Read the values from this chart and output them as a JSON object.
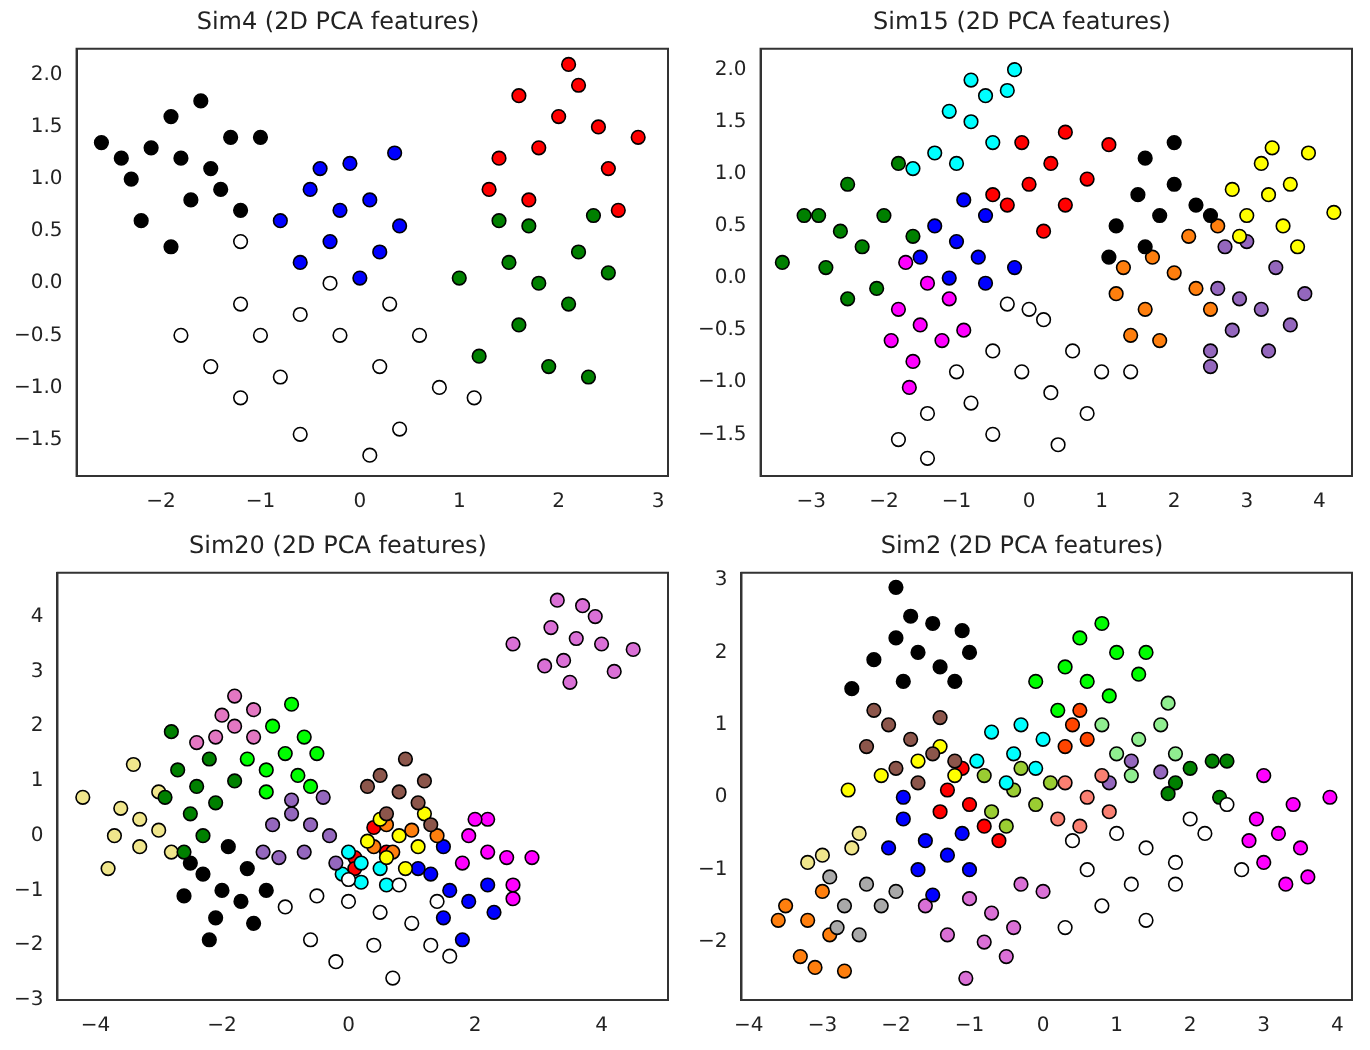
{
  "chart_data": [
    {
      "type": "scatter",
      "title": "Sim4 (2D PCA features)",
      "marker": "circle",
      "grid": false,
      "xlim": [
        -2.85,
        3.1
      ],
      "ylim": [
        -1.85,
        2.25
      ],
      "xticks": [
        -2,
        -1,
        0,
        1,
        2,
        3
      ],
      "yticks": [
        -1.5,
        {
          "value": -1,
          "label": "−1.0"
        },
        -0.5,
        {
          "value": 0,
          "label": "0.0"
        },
        0.5,
        {
          "value": 1,
          "label": "1.0"
        },
        1.5,
        {
          "value": 2,
          "label": "2.0"
        }
      ],
      "series": [
        {
          "color": "#ffffff",
          "x": [
            -0.2,
            -0.6,
            0.2,
            -1.2,
            -1.8,
            -1.5,
            -0.8,
            0.6,
            0.8,
            0.4,
            0.1,
            -0.6,
            -1.2,
            1.15,
            -1.2,
            -0.3,
            0.3,
            -1.0
          ],
          "values": [
            -0.5,
            -0.3,
            -0.8,
            -0.2,
            -0.5,
            -0.8,
            -0.9,
            -0.5,
            -1.0,
            -1.4,
            -1.65,
            -1.45,
            -1.1,
            -1.1,
            0.4,
            0.0,
            -0.2,
            -0.5
          ]
        },
        {
          "color": "#000000",
          "x": [
            -1.8,
            -2.1,
            -1.5,
            -2.3,
            -1.3,
            -1.9,
            -1.7,
            -2.6,
            -1.0,
            -1.9,
            -1.2,
            -2.2,
            -1.6,
            -2.4,
            -1.4
          ],
          "values": [
            1.2,
            1.3,
            1.1,
            1.0,
            1.4,
            1.6,
            0.8,
            1.35,
            1.4,
            0.35,
            0.7,
            0.6,
            1.75,
            1.2,
            0.9
          ]
        },
        {
          "color": "#0000ff",
          "x": [
            -0.2,
            -0.5,
            0.1,
            -0.3,
            0.2,
            -0.8,
            -0.1,
            0.35,
            0.4,
            -0.6,
            0.0,
            -0.4
          ],
          "values": [
            0.7,
            0.9,
            0.8,
            0.4,
            0.3,
            0.6,
            1.15,
            1.25,
            0.55,
            0.2,
            0.05,
            1.1
          ]
        },
        {
          "color": "#ff0000",
          "x": [
            2.0,
            1.6,
            2.4,
            1.8,
            2.2,
            1.4,
            2.8,
            2.6,
            2.1,
            1.3,
            2.5,
            1.7
          ],
          "values": [
            1.6,
            1.8,
            1.5,
            1.3,
            1.9,
            1.2,
            1.4,
            0.7,
            2.1,
            0.9,
            1.1,
            0.8
          ]
        },
        {
          "color": "#008000",
          "x": [
            1.8,
            1.5,
            2.1,
            1.6,
            2.2,
            1.0,
            2.5,
            1.4,
            1.9,
            2.3,
            1.2,
            1.7,
            2.35
          ],
          "values": [
            0.0,
            0.2,
            -0.2,
            -0.4,
            0.3,
            0.05,
            0.1,
            0.6,
            -0.8,
            -0.9,
            -0.7,
            0.55,
            0.65
          ]
        }
      ]
    },
    {
      "type": "scatter",
      "title": "Sim15 (2D PCA features)",
      "marker": "circle",
      "grid": false,
      "xlim": [
        -3.7,
        4.45
      ],
      "ylim": [
        -1.9,
        2.2
      ],
      "xticks": [
        -3,
        -2,
        -1,
        0,
        1,
        2,
        3,
        4
      ],
      "yticks": [
        -1.5,
        {
          "value": -1,
          "label": "−1.0"
        },
        -0.5,
        {
          "value": 0,
          "label": "0.0"
        },
        0.5,
        {
          "value": 1,
          "label": "1.0"
        },
        1.5,
        {
          "value": 2,
          "label": "2.0"
        }
      ],
      "series": [
        {
          "color": "#ffffff",
          "x": [
            -0.1,
            -0.5,
            0.3,
            -0.8,
            0.6,
            1.0,
            1.4,
            -1.4,
            -1.8,
            -1.4,
            0.4,
            0.0,
            -0.3,
            0.8,
            -1.0,
            -0.5,
            0.2
          ],
          "values": [
            -0.9,
            -0.7,
            -1.1,
            -1.2,
            -0.7,
            -0.9,
            -0.9,
            -1.3,
            -1.55,
            -1.73,
            -1.6,
            -0.3,
            -0.25,
            -1.3,
            -0.9,
            -1.5,
            -0.4
          ]
        },
        {
          "color": "#008000",
          "x": [
            -2.6,
            -2.9,
            -2.3,
            -2.5,
            -2.8,
            -3.4,
            -2.0,
            -1.8,
            -2.5,
            -2.1,
            -3.1,
            -1.6
          ],
          "values": [
            0.45,
            0.6,
            0.3,
            0.9,
            0.1,
            0.15,
            0.6,
            1.1,
            -0.2,
            -0.1,
            0.6,
            0.4
          ]
        },
        {
          "color": "#00ffff",
          "x": [
            -0.8,
            -1.1,
            -0.5,
            -1.0,
            -0.3,
            -0.8,
            -0.2,
            -1.3,
            -1.6,
            -0.6
          ],
          "values": [
            1.5,
            1.6,
            1.3,
            1.1,
            1.8,
            1.9,
            2.0,
            1.2,
            1.05,
            1.75
          ]
        },
        {
          "color": "#ff0000",
          "x": [
            0.0,
            -0.3,
            0.3,
            0.5,
            -0.1,
            0.8,
            0.2,
            1.1,
            -0.5,
            0.5
          ],
          "values": [
            0.9,
            0.7,
            1.1,
            0.7,
            1.3,
            0.95,
            0.45,
            1.28,
            0.8,
            1.4
          ]
        },
        {
          "color": "#0000ff",
          "x": [
            -1.0,
            -1.3,
            -0.7,
            -1.1,
            -0.6,
            -1.5,
            -0.9,
            -0.2,
            -0.6
          ],
          "values": [
            0.35,
            0.5,
            0.2,
            0.0,
            0.6,
            0.2,
            0.75,
            0.1,
            -0.05
          ]
        },
        {
          "color": "#ff00ff",
          "x": [
            -1.5,
            -1.8,
            -1.2,
            -1.6,
            -1.9,
            -1.1,
            -1.4,
            -1.65,
            -0.9,
            -1.7
          ],
          "values": [
            -0.45,
            -0.3,
            -0.6,
            -0.8,
            -0.6,
            -0.2,
            -0.05,
            -1.05,
            -0.5,
            0.15
          ]
        },
        {
          "color": "#000000",
          "x": [
            1.8,
            1.5,
            2.0,
            1.2,
            1.6,
            2.3,
            2.0,
            1.6,
            1.1,
            2.5
          ],
          "values": [
            0.6,
            0.8,
            0.9,
            0.5,
            0.3,
            0.7,
            1.3,
            1.15,
            0.2,
            0.6
          ]
        },
        {
          "color": "#ffff00",
          "x": [
            3.3,
            3.0,
            3.6,
            3.2,
            3.5,
            2.8,
            3.85,
            4.2,
            3.35,
            2.9,
            3.7
          ],
          "values": [
            0.8,
            0.6,
            0.9,
            1.1,
            0.5,
            0.85,
            1.2,
            0.63,
            1.25,
            0.4,
            0.3
          ]
        },
        {
          "color": "#ff7f0e",
          "x": [
            2.0,
            1.7,
            2.3,
            1.6,
            2.2,
            1.3,
            1.2,
            1.8,
            2.6,
            2.5,
            1.4
          ],
          "values": [
            0.05,
            0.2,
            -0.1,
            -0.3,
            0.4,
            0.1,
            -0.15,
            -0.6,
            0.5,
            -0.3,
            -0.55
          ]
        },
        {
          "color": "#9467bd",
          "x": [
            2.9,
            2.6,
            3.2,
            2.8,
            3.4,
            2.7,
            2.5,
            3.3,
            2.5,
            3.8,
            3.6,
            3.0
          ],
          "values": [
            -0.2,
            -0.1,
            -0.3,
            -0.5,
            0.1,
            0.3,
            -0.7,
            -0.7,
            -0.85,
            -0.15,
            -0.45,
            0.35
          ]
        }
      ]
    },
    {
      "type": "scatter",
      "title": "Sim20 (2D PCA features)",
      "marker": "circle",
      "grid": false,
      "xlim": [
        -4.6,
        5.05
      ],
      "ylim": [
        -3,
        4.8
      ],
      "xticks": [
        -4,
        -2,
        0,
        2,
        4
      ],
      "yticks": [
        -3,
        -2,
        -1,
        0,
        1,
        2,
        3,
        4
      ],
      "series": [
        {
          "color": "#ffffff",
          "x": [
            0.5,
            0.0,
            1.0,
            -0.5,
            0.4,
            1.3,
            -0.2,
            0.7,
            1.6,
            -1.0,
            -0.6,
            0.0,
            0.8,
            1.4
          ],
          "values": [
            -1.4,
            -1.2,
            -1.6,
            -1.1,
            -2.0,
            -2.0,
            -2.3,
            -2.6,
            -2.2,
            -1.3,
            -1.9,
            -0.8,
            -0.9,
            -1.2
          ]
        },
        {
          "color": "#da70d6",
          "x": [
            3.6,
            3.2,
            4.0,
            3.4,
            3.9,
            3.3,
            3.1,
            3.5,
            4.5,
            2.6,
            4.2,
            3.7
          ],
          "values": [
            3.6,
            3.8,
            3.5,
            3.2,
            4.0,
            4.3,
            3.1,
            2.8,
            3.4,
            3.5,
            3.0,
            4.2
          ]
        },
        {
          "color": "#e377c2",
          "x": [
            -1.8,
            -2.1,
            -1.5,
            -2.4,
            -1.8,
            -2.0,
            -1.5
          ],
          "values": [
            2.0,
            1.8,
            2.3,
            1.7,
            2.55,
            2.2,
            1.8
          ]
        },
        {
          "color": "#00ff00",
          "x": [
            -1.0,
            -1.3,
            -0.7,
            -0.8,
            -1.2,
            -0.5,
            -0.9,
            -1.6,
            -0.6,
            -1.3
          ],
          "values": [
            1.5,
            1.2,
            1.8,
            1.1,
            2.0,
            1.5,
            2.4,
            1.4,
            0.9,
            0.8
          ]
        },
        {
          "color": "#008000",
          "x": [
            -2.4,
            -2.7,
            -2.1,
            -2.5,
            -2.2,
            -2.9,
            -2.8,
            -1.8,
            -2.3,
            -2.6
          ],
          "values": [
            0.9,
            1.2,
            0.6,
            0.4,
            1.4,
            0.7,
            1.9,
            1.0,
            0.0,
            -0.3
          ]
        },
        {
          "color": "#f0e68c",
          "x": [
            -3.3,
            -3.6,
            -3.0,
            -3.3,
            -3.0,
            -4.2,
            -3.8,
            -3.7,
            -3.4,
            -2.8
          ],
          "values": [
            0.3,
            0.5,
            0.1,
            -0.2,
            0.8,
            0.7,
            -0.6,
            0.0,
            1.3,
            -0.3
          ]
        },
        {
          "color": "#000000",
          "x": [
            -2.0,
            -2.3,
            -1.7,
            -2.1,
            -1.6,
            -2.6,
            -1.3,
            -2.2,
            -1.9,
            -1.5,
            -2.5
          ],
          "values": [
            -1.0,
            -0.7,
            -1.2,
            -1.5,
            -0.6,
            -1.1,
            -1.0,
            -1.9,
            -0.2,
            -1.6,
            -0.5
          ]
        },
        {
          "color": "#9467bd",
          "x": [
            -0.6,
            -0.9,
            -0.3,
            -0.7,
            -0.4,
            -1.2,
            -1.1,
            -0.2,
            -0.9,
            -1.35
          ],
          "values": [
            0.2,
            0.4,
            0.0,
            -0.3,
            0.7,
            0.2,
            -0.4,
            -0.5,
            0.65,
            -0.3
          ]
        },
        {
          "color": "#8c564b",
          "x": [
            0.8,
            0.5,
            1.1,
            0.6,
            1.2,
            0.3,
            0.9,
            1.3
          ],
          "values": [
            0.8,
            1.1,
            0.6,
            0.4,
            1.0,
            0.9,
            1.4,
            0.2
          ]
        },
        {
          "color": "#ffff00",
          "x": [
            0.8,
            0.5,
            1.1,
            0.6,
            1.2,
            0.3,
            0.9
          ],
          "values": [
            0.0,
            0.3,
            -0.2,
            -0.4,
            0.4,
            -0.1,
            -0.6
          ]
        },
        {
          "color": "#ff7f0e",
          "x": [
            0.6,
            0.4,
            1.0,
            0.7,
            1.4
          ],
          "values": [
            0.2,
            -0.2,
            0.1,
            -0.3,
            0.0
          ]
        },
        {
          "color": "#00ffff",
          "x": [
            0.2,
            0.0,
            0.5,
            -0.1,
            0.6,
            0.2
          ],
          "values": [
            -0.5,
            -0.3,
            -0.6,
            -0.7,
            -0.9,
            -0.85
          ]
        },
        {
          "color": "#ff00ff",
          "x": [
            2.2,
            1.9,
            2.5,
            2.2,
            2.6,
            1.8,
            2.6,
            2.9,
            2.0
          ],
          "values": [
            -0.3,
            0.0,
            -0.4,
            0.3,
            -0.9,
            -0.5,
            -1.15,
            -0.4,
            0.3
          ]
        },
        {
          "color": "#0000ff",
          "x": [
            1.6,
            1.3,
            1.9,
            1.5,
            2.2,
            1.1,
            1.8,
            1.5,
            2.3
          ],
          "values": [
            -1.0,
            -0.7,
            -1.2,
            -1.5,
            -0.9,
            -0.6,
            -1.9,
            -0.2,
            -1.4
          ]
        },
        {
          "color": "#ff0000",
          "x": [
            0.4,
            0.1,
            0.1,
            0.6
          ],
          "values": [
            0.15,
            -0.4,
            -0.6,
            -0.3
          ]
        }
      ]
    },
    {
      "type": "scatter",
      "title": "Sim2 (2D PCA features)",
      "marker": "circle",
      "grid": false,
      "xlim": [
        -4.1,
        4.2
      ],
      "ylim": [
        -2.8,
        3.1
      ],
      "xticks": [
        -4,
        -3,
        -2,
        -1,
        0,
        1,
        2,
        3,
        4
      ],
      "yticks": [
        -2,
        -1,
        0,
        1,
        2,
        3
      ],
      "series": [
        {
          "color": "#ffffff",
          "x": [
            1.4,
            1.0,
            1.8,
            0.6,
            2.2,
            0.8,
            1.4,
            0.3,
            2.5,
            2.7,
            1.8,
            0.4,
            1.2,
            2.0
          ],
          "values": [
            -0.7,
            -0.5,
            -0.9,
            -1.0,
            -0.5,
            -1.5,
            -1.7,
            -1.8,
            -0.1,
            -1.0,
            -1.2,
            -0.6,
            -1.2,
            -0.3
          ]
        },
        {
          "color": "#000000",
          "x": [
            -1.7,
            -2.0,
            -1.4,
            -1.9,
            -1.5,
            -2.3,
            -1.0,
            -2.6,
            -2.0,
            -1.2,
            -1.8,
            -1.1
          ],
          "values": [
            2.0,
            2.2,
            1.8,
            1.6,
            2.4,
            1.9,
            2.0,
            1.5,
            2.9,
            1.6,
            2.5,
            2.3
          ]
        },
        {
          "color": "#8c564b",
          "x": [
            -1.8,
            -2.1,
            -1.5,
            -2.0,
            -1.4,
            -2.4,
            -1.2,
            -1.7,
            -2.3
          ],
          "values": [
            0.8,
            1.0,
            0.6,
            0.4,
            1.1,
            0.7,
            0.5,
            0.2,
            1.2
          ]
        },
        {
          "color": "#ffff00",
          "x": [
            -2.2,
            -1.7,
            -1.4,
            -2.65,
            -1.2
          ],
          "values": [
            0.3,
            0.5,
            0.7,
            0.1,
            0.3
          ]
        },
        {
          "color": "#00ff00",
          "x": [
            0.6,
            0.3,
            0.9,
            0.5,
            1.0,
            0.2,
            1.3,
            -0.1,
            0.8,
            1.4
          ],
          "values": [
            1.6,
            1.8,
            1.4,
            2.2,
            2.0,
            1.2,
            1.7,
            1.6,
            2.4,
            2.0
          ]
        },
        {
          "color": "#ff4500",
          "x": [
            0.4,
            0.6,
            0.3,
            0.5
          ],
          "values": [
            1.0,
            0.8,
            0.7,
            1.2
          ]
        },
        {
          "color": "#00ffff",
          "x": [
            -0.4,
            -0.7,
            -0.1,
            -0.5,
            0.0,
            -0.9,
            -0.3
          ],
          "values": [
            0.6,
            0.9,
            0.4,
            0.2,
            0.8,
            0.5,
            1.0
          ]
        },
        {
          "color": "#9acd32",
          "x": [
            -0.4,
            -0.7,
            -0.1,
            -0.3,
            0.1,
            -0.8,
            -0.5
          ],
          "values": [
            0.1,
            -0.2,
            -0.1,
            0.4,
            0.2,
            0.3,
            -0.4
          ]
        },
        {
          "color": "#ff0000",
          "x": [
            -1.0,
            -1.3,
            -0.8,
            -1.1,
            -0.6,
            -1.4
          ],
          "values": [
            -0.1,
            0.1,
            -0.4,
            0.4,
            -0.6,
            -0.2
          ]
        },
        {
          "color": "#90ee90",
          "x": [
            1.3,
            1.0,
            1.6,
            1.2,
            1.8,
            0.8,
            1.7
          ],
          "values": [
            0.8,
            0.6,
            1.0,
            0.3,
            0.6,
            1.0,
            1.3
          ]
        },
        {
          "color": "#008000",
          "x": [
            2.0,
            1.8,
            2.3,
            2.4,
            1.7,
            2.5
          ],
          "values": [
            0.4,
            0.2,
            0.5,
            0.0,
            0.05,
            0.5
          ]
        },
        {
          "color": "#fa8072",
          "x": [
            0.6,
            0.3,
            0.9,
            0.5,
            0.8,
            0.2
          ],
          "values": [
            0.0,
            0.2,
            -0.2,
            -0.4,
            0.3,
            -0.3
          ]
        },
        {
          "color": "#9467bd",
          "x": [
            1.2,
            0.9,
            1.6
          ],
          "values": [
            0.5,
            0.2,
            0.35
          ]
        },
        {
          "color": "#ff00ff",
          "x": [
            3.2,
            2.9,
            3.5,
            3.0,
            3.4,
            3.9,
            3.6,
            3.0,
            3.3,
            2.8
          ],
          "values": [
            -0.5,
            -0.3,
            -0.7,
            -0.9,
            -0.1,
            0.0,
            -1.1,
            0.3,
            -1.2,
            -0.6
          ]
        },
        {
          "color": "#0000ff",
          "x": [
            -1.6,
            -1.9,
            -1.3,
            -1.7,
            -2.1,
            -1.1,
            -1.5,
            -1.9,
            -1.0
          ],
          "values": [
            -0.6,
            -0.3,
            -0.8,
            -1.0,
            -0.7,
            -0.5,
            -1.35,
            0.0,
            -1.0
          ]
        },
        {
          "color": "#da70d6",
          "x": [
            -0.7,
            -1.0,
            -0.4,
            -0.8,
            -0.3,
            -1.3,
            -0.5,
            -1.05,
            -1.6,
            0.0
          ],
          "values": [
            -1.6,
            -1.4,
            -1.8,
            -2.0,
            -1.2,
            -1.9,
            -2.2,
            -2.5,
            -1.5,
            -1.3
          ]
        },
        {
          "color": "#a9a9a9",
          "x": [
            -2.7,
            -2.4,
            -2.5,
            -2.9,
            -2.2,
            -2.8,
            -2.0
          ],
          "values": [
            -1.5,
            -1.2,
            -1.9,
            -1.1,
            -1.5,
            -1.8,
            -1.3
          ]
        },
        {
          "color": "#f0e68c",
          "x": [
            -3.0,
            -2.6,
            -2.5,
            -3.2
          ],
          "values": [
            -0.8,
            -0.7,
            -0.5,
            -0.9
          ]
        },
        {
          "color": "#ff7f0e",
          "x": [
            -3.2,
            -3.5,
            -2.9,
            -3.3,
            -3.0,
            -3.6,
            -2.7,
            -3.1
          ],
          "values": [
            -1.7,
            -1.5,
            -1.9,
            -2.2,
            -1.3,
            -1.7,
            -2.4,
            -2.35
          ]
        }
      ]
    }
  ]
}
